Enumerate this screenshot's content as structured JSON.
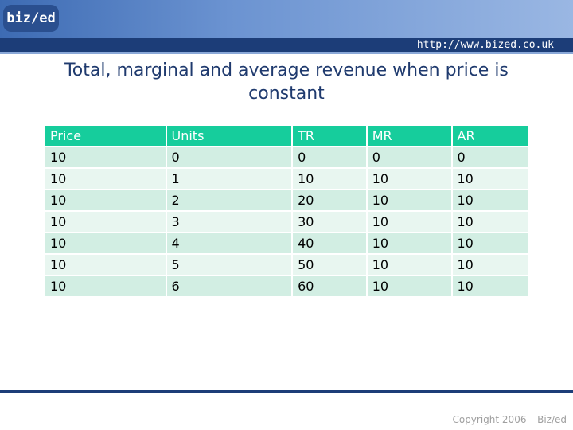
{
  "header": {
    "logo": "biz/ed",
    "url": "http://www.bized.co.uk"
  },
  "title": "Total, marginal and average revenue when price is constant",
  "table": {
    "columns": [
      "Price",
      "Units",
      "TR",
      "MR",
      "AR"
    ],
    "rows": [
      [
        10,
        0,
        0,
        0,
        0
      ],
      [
        10,
        1,
        10,
        10,
        10
      ],
      [
        10,
        2,
        20,
        10,
        10
      ],
      [
        10,
        3,
        30,
        10,
        10
      ],
      [
        10,
        4,
        40,
        10,
        10
      ],
      [
        10,
        5,
        50,
        10,
        10
      ],
      [
        10,
        6,
        60,
        10,
        10
      ]
    ]
  },
  "footer": "Copyright 2006 – Biz/ed"
}
